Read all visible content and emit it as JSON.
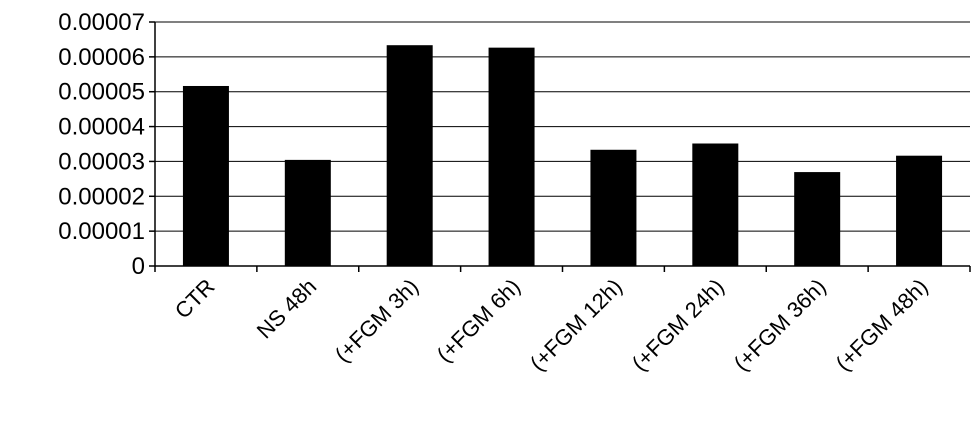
{
  "chart_data": {
    "type": "bar",
    "title": "",
    "xlabel": "",
    "ylabel": "",
    "categories": [
      "CTR",
      "NS 48h",
      "(+FGM 3h)",
      "(+FGM 6h)",
      "(+FGM 12h)",
      "(+FGM 24h)",
      "(+FGM 36h)",
      "(+FGM 48h)"
    ],
    "values": [
      5.15e-05,
      3.03e-05,
      6.32e-05,
      6.25e-05,
      3.32e-05,
      3.5e-05,
      2.68e-05,
      3.15e-05
    ],
    "ylim": [
      0,
      7e-05
    ],
    "yticks": [
      {
        "value": 7e-05,
        "label": "0.00007"
      },
      {
        "value": 6e-05,
        "label": "0.00006"
      },
      {
        "value": 5e-05,
        "label": "0.00005"
      },
      {
        "value": 4e-05,
        "label": "0.00004"
      },
      {
        "value": 3e-05,
        "label": "0.00003"
      },
      {
        "value": 2e-05,
        "label": "0.00002"
      },
      {
        "value": 1e-05,
        "label": "0.00001"
      },
      {
        "value": 0,
        "label": "0"
      }
    ],
    "grid": true,
    "legend": "none",
    "bar_color": "#000000",
    "background": "#ffffff"
  }
}
